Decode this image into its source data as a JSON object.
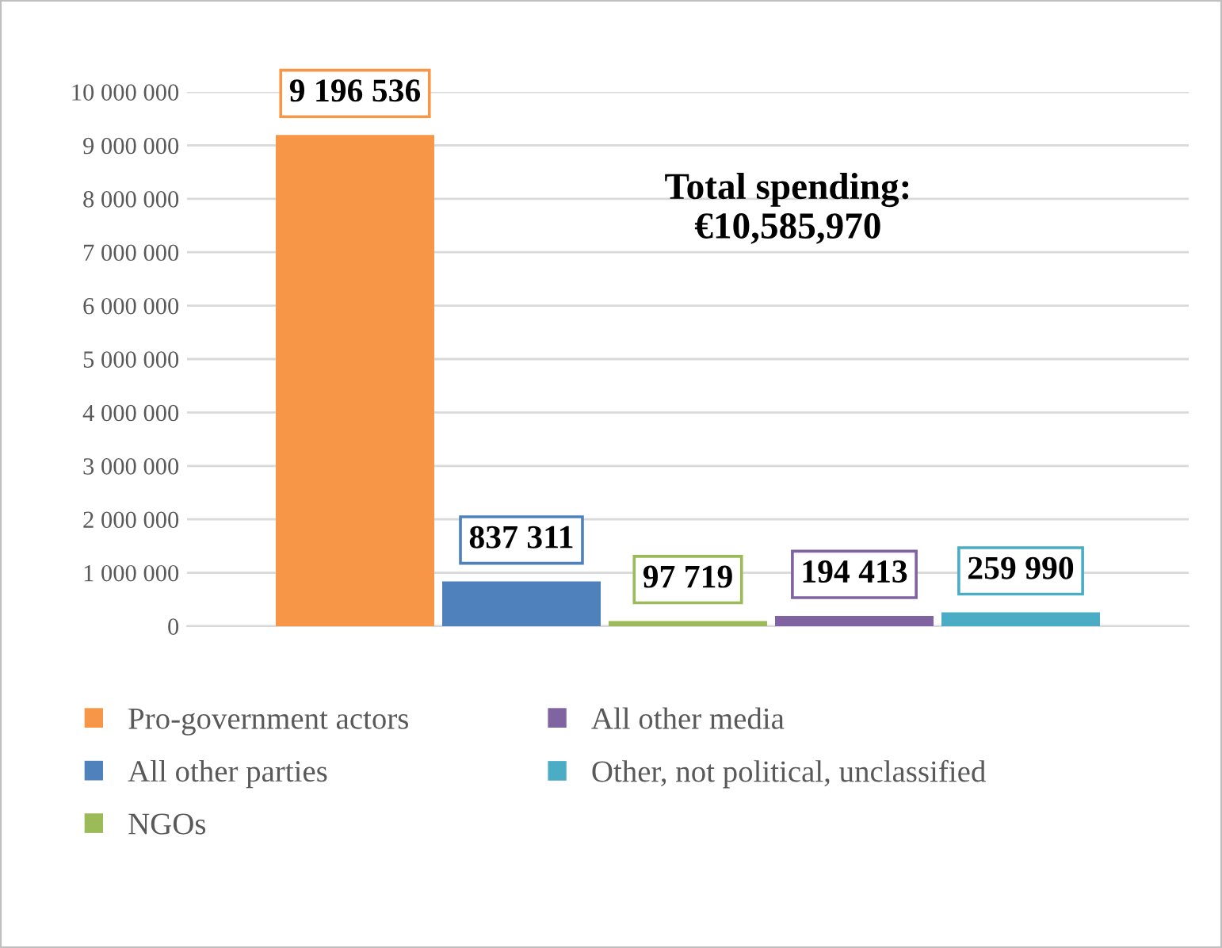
{
  "chart_data": {
    "type": "bar",
    "categories": [
      null
    ],
    "series": [
      {
        "name": "Pro-government actors",
        "color": "#f79646",
        "values": [
          9196536
        ],
        "value_labels": [
          "9 196 536"
        ]
      },
      {
        "name": "All other parties",
        "color": "#4f81bd",
        "values": [
          837311
        ],
        "value_labels": [
          "837 311"
        ]
      },
      {
        "name": "NGOs",
        "color": "#9bbb59",
        "values": [
          97719
        ],
        "value_labels": [
          "97 719"
        ]
      },
      {
        "name": "All other media",
        "color": "#8064a2",
        "values": [
          194413
        ],
        "value_labels": [
          "194 413"
        ]
      },
      {
        "name": "Other, not political, unclassified",
        "color": "#4bacc6",
        "values": [
          259990
        ],
        "value_labels": [
          "259 990"
        ]
      }
    ],
    "ylim": [
      0,
      10000000
    ],
    "yticks": [
      {
        "value": 0,
        "label": "0"
      },
      {
        "value": 1000000,
        "label": "1 000 000"
      },
      {
        "value": 2000000,
        "label": "2 000 000"
      },
      {
        "value": 3000000,
        "label": "3 000 000"
      },
      {
        "value": 4000000,
        "label": "4 000 000"
      },
      {
        "value": 5000000,
        "label": "5 000 000"
      },
      {
        "value": 6000000,
        "label": "6 000 000"
      },
      {
        "value": 7000000,
        "label": "7 000 000"
      },
      {
        "value": 8000000,
        "label": "8 000 000"
      },
      {
        "value": 9000000,
        "label": "9 000 000"
      },
      {
        "value": 10000000,
        "label": "10 000 000"
      }
    ],
    "grid": "y",
    "legend": "bottom",
    "tick_labels": "y",
    "annotations": [
      "Total spending:\n€10,585,970"
    ]
  }
}
